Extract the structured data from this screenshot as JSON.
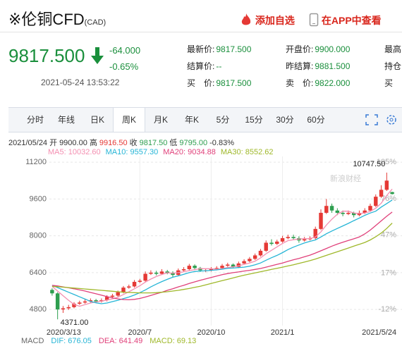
{
  "header": {
    "title": "※伦铜CFD",
    "code": "(CAD)",
    "actions": [
      "添加自选",
      "在APP中查看"
    ]
  },
  "quote": {
    "price": "9817.500",
    "change": "-64.000",
    "change_pct": "-0.65%",
    "time": "2021-05-24 13:53:22"
  },
  "info": [
    [
      {
        "label": "最新价:",
        "value": "9817.500"
      },
      {
        "label": "开盘价:",
        "value": "9900.000"
      },
      {
        "label": "最高"
      }
    ],
    [
      {
        "label": "结算价:",
        "value": "--"
      },
      {
        "label": "昨结算:",
        "value": "9881.500"
      },
      {
        "label": "持仓"
      }
    ],
    [
      {
        "label": "买　价:",
        "value": "9817.500"
      },
      {
        "label": "卖　价:",
        "value": "9822.000"
      },
      {
        "label": "买"
      }
    ]
  ],
  "tabs": [
    "分时",
    "年线",
    "日K",
    "周K",
    "月K",
    "年K",
    "5分",
    "15分",
    "30分",
    "60分"
  ],
  "selected_tab": 3,
  "chart_data": {
    "type": "candlestick",
    "ohlc_line": [
      {
        "label": "2021/05/24",
        "color": "#333"
      },
      {
        "label": "开",
        "value": "9900.00",
        "color": "#333"
      },
      {
        "label": "高",
        "value": "9916.50",
        "color": "#e53935"
      },
      {
        "label": "收",
        "value": "9817.50",
        "color": "#2e9e4f"
      },
      {
        "label": "低",
        "value": "9795.00",
        "color": "#2e9e4f"
      },
      {
        "label": "-0.83%",
        "color": "#2e9e4f"
      }
    ],
    "watermark": "新浪财经",
    "categories": [
      "2020/3/13",
      null,
      null,
      null,
      null,
      null,
      null,
      null,
      null,
      null,
      null,
      null,
      null,
      null,
      null,
      null,
      "2020/7",
      null,
      null,
      null,
      null,
      null,
      null,
      null,
      null,
      null,
      null,
      null,
      null,
      "2020/10",
      null,
      null,
      null,
      null,
      null,
      null,
      null,
      null,
      null,
      null,
      null,
      null,
      "2021/1",
      null,
      null,
      null,
      null,
      null,
      null,
      null,
      null,
      null,
      null,
      null,
      null,
      null,
      null,
      null,
      null,
      null,
      null,
      null,
      "2021/5/24"
    ],
    "open": [
      5650,
      5500,
      4800,
      4850,
      4900,
      5050,
      5100,
      5150,
      5200,
      5150,
      5200,
      5350,
      5400,
      5550,
      5750,
      5800,
      6000,
      6050,
      6350,
      6400,
      6350,
      6450,
      6400,
      6300,
      6500,
      6550,
      6700,
      6600,
      6500,
      6500,
      6550,
      6600,
      6700,
      6750,
      6650,
      6800,
      6900,
      7000,
      7150,
      7350,
      7700,
      7650,
      7750,
      7900,
      7950,
      7900,
      7800,
      7850,
      7900,
      8300,
      9000,
      9300,
      9100,
      9000,
      8950,
      9000,
      8900,
      9000,
      9100,
      9300,
      9700,
      10000,
      9900
    ],
    "high": [
      5720,
      5550,
      4950,
      5000,
      5120,
      5180,
      5230,
      5280,
      5260,
      5280,
      5420,
      5480,
      5620,
      5820,
      5880,
      6080,
      6130,
      6450,
      6500,
      6480,
      6550,
      6520,
      6460,
      6580,
      6640,
      6780,
      6760,
      6650,
      6580,
      6640,
      6680,
      6780,
      6830,
      6800,
      6880,
      6980,
      7080,
      7230,
      7430,
      7800,
      7850,
      7830,
      8000,
      8050,
      8050,
      7980,
      7950,
      7980,
      8400,
      9150,
      9600,
      9400,
      9200,
      9100,
      9100,
      9050,
      9100,
      9200,
      9400,
      9800,
      10200,
      10747.5,
      9916.5
    ],
    "low": [
      5400,
      4371,
      4650,
      4780,
      4850,
      5000,
      5050,
      5100,
      5080,
      5100,
      5150,
      5300,
      5350,
      5500,
      5700,
      5750,
      5950,
      6000,
      6300,
      6280,
      6300,
      6330,
      6200,
      6250,
      6450,
      6500,
      6550,
      6430,
      6420,
      6450,
      6500,
      6550,
      6650,
      6580,
      6600,
      6750,
      6850,
      6950,
      7100,
      7300,
      7580,
      7600,
      7700,
      7850,
      7820,
      7700,
      7750,
      7800,
      7850,
      8250,
      8950,
      9000,
      8900,
      8850,
      8900,
      8800,
      8850,
      8950,
      9050,
      9250,
      9650,
      9950,
      9795
    ],
    "close": [
      5500,
      4800,
      4850,
      4900,
      5050,
      5100,
      5150,
      5200,
      5150,
      5200,
      5350,
      5400,
      5550,
      5750,
      5800,
      6000,
      6050,
      6350,
      6400,
      6350,
      6450,
      6400,
      6300,
      6500,
      6550,
      6700,
      6600,
      6500,
      6500,
      6550,
      6600,
      6700,
      6750,
      6650,
      6800,
      6900,
      7000,
      7150,
      7350,
      7700,
      7650,
      7750,
      7900,
      7950,
      7900,
      7800,
      7850,
      7900,
      8300,
      9000,
      9300,
      9100,
      9000,
      8950,
      9000,
      8900,
      9000,
      9100,
      9300,
      9700,
      10000,
      10400,
      9817.5
    ],
    "up_color": "#e53935",
    "down_color": "#2e9e4f",
    "series": [
      {
        "name": "MA5: 10032.60",
        "color": "#f48fb1",
        "values": [
          5800,
          5600,
          5400,
          5200,
          5020,
          4940,
          5010,
          5080,
          5130,
          5160,
          5210,
          5260,
          5330,
          5450,
          5570,
          5700,
          5830,
          5990,
          6120,
          6230,
          6320,
          6390,
          6380,
          6400,
          6440,
          6490,
          6530,
          6570,
          6570,
          6570,
          6550,
          6570,
          6620,
          6650,
          6700,
          6760,
          6820,
          6900,
          7040,
          7220,
          7370,
          7520,
          7670,
          7790,
          7830,
          7860,
          7880,
          7880,
          7950,
          8170,
          8470,
          8720,
          8940,
          9070,
          9070,
          8990,
          8970,
          8990,
          9060,
          9200,
          9420,
          9750,
          10032.6
        ]
      },
      {
        "name": "MA10: 9557.30",
        "color": "#26b5d6",
        "values": [
          5850,
          5750,
          5650,
          5550,
          5450,
          5350,
          5250,
          5150,
          5090,
          5050,
          5080,
          5140,
          5200,
          5270,
          5340,
          5430,
          5530,
          5650,
          5780,
          5900,
          6010,
          6110,
          6200,
          6260,
          6330,
          6400,
          6450,
          6470,
          6480,
          6500,
          6520,
          6550,
          6590,
          6600,
          6620,
          6640,
          6680,
          6740,
          6820,
          6940,
          7050,
          7150,
          7270,
          7400,
          7510,
          7600,
          7690,
          7760,
          7820,
          7950,
          8090,
          8210,
          8320,
          8430,
          8540,
          8660,
          8770,
          8890,
          8990,
          9070,
          9250,
          9400,
          9557.3
        ]
      },
      {
        "name": "MA20: 9034.88",
        "color": "#e0407a",
        "values": [
          5850,
          5820,
          5780,
          5740,
          5700,
          5650,
          5600,
          5540,
          5480,
          5420,
          5360,
          5300,
          5260,
          5230,
          5220,
          5240,
          5280,
          5340,
          5410,
          5480,
          5550,
          5630,
          5700,
          5780,
          5850,
          5930,
          6000,
          6070,
          6130,
          6190,
          6250,
          6310,
          6360,
          6400,
          6430,
          6470,
          6500,
          6540,
          6580,
          6640,
          6700,
          6760,
          6820,
          6890,
          6960,
          7020,
          7090,
          7160,
          7250,
          7350,
          7450,
          7550,
          7640,
          7720,
          7800,
          7870,
          7950,
          8080,
          8250,
          8450,
          8650,
          8850,
          9034.88
        ]
      },
      {
        "name": "MA30: 8552.62",
        "color": "#9fb82a",
        "values": [
          5800,
          5790,
          5770,
          5750,
          5730,
          5710,
          5690,
          5670,
          5650,
          5630,
          5610,
          5590,
          5570,
          5550,
          5540,
          5530,
          5520,
          5520,
          5520,
          5530,
          5550,
          5570,
          5600,
          5630,
          5670,
          5710,
          5760,
          5810,
          5870,
          5930,
          5990,
          6050,
          6110,
          6170,
          6230,
          6290,
          6340,
          6390,
          6440,
          6490,
          6540,
          6590,
          6640,
          6690,
          6740,
          6800,
          6860,
          6920,
          6990,
          7070,
          7150,
          7230,
          7310,
          7390,
          7470,
          7550,
          7630,
          7710,
          7820,
          7960,
          8120,
          8320,
          8552.62
        ]
      }
    ],
    "ylim": [
      4100,
      11450
    ],
    "yticks": [
      4800,
      6400,
      8000,
      9600,
      11200
    ],
    "y2lim": [
      -24.8,
      109.6
    ],
    "y2ticks": [
      {
        "value": -12,
        "label": "-12%"
      },
      {
        "value": 17,
        "label": "17%"
      },
      {
        "value": 47,
        "label": "47%"
      },
      {
        "value": 76,
        "label": "76%"
      },
      {
        "value": 105,
        "label": "105%"
      }
    ],
    "annotations": [
      "10747.50",
      "4371.00"
    ],
    "macd_legend": [
      {
        "label": "MACD",
        "color": "#666"
      },
      {
        "label": "DIF: 676.05",
        "color": "#26b5d6"
      },
      {
        "label": "DEA: 641.49",
        "color": "#e0407a"
      },
      {
        "label": "MACD: 69.13",
        "color": "#9fb82a"
      }
    ]
  }
}
